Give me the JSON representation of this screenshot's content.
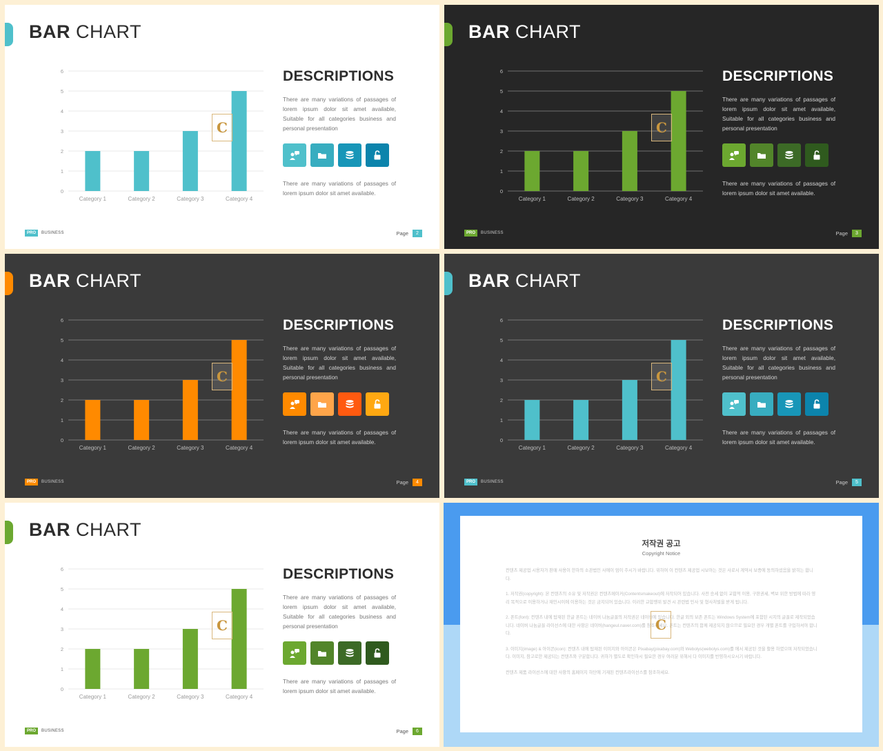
{
  "slides": [
    {
      "theme": "light",
      "accent": "#4fc0cb",
      "bar_color": "#4fc0cb",
      "title_bold": "BAR",
      "title_rest": "CHART",
      "desc_title": "DESCRIPTIONS",
      "desc_para": "There are many variations of passages of lorem ipsum dolor sit amet available, Suitable for all categories business and personal presentation",
      "desc_para2": "There are many variations of passages of lorem ipsum dolor sit amet available.",
      "icon_colors": [
        "#4fc0cb",
        "#38adc0",
        "#1896b8",
        "#0c84ac"
      ],
      "icons": [
        "person-chat-icon",
        "folder-icon",
        "database-icon",
        "unlock-icon"
      ],
      "brand_pro": "PRO",
      "brand_text": "BUSINESS",
      "page_label": "Page",
      "page_num": "2"
    },
    {
      "theme": "dark1",
      "accent": "#6ca830",
      "bar_color": "#6ca830",
      "title_bold": "BAR",
      "title_rest": "CHART",
      "desc_title": "DESCRIPTIONS",
      "desc_para": "There are many variations of passages of lorem ipsum dolor sit amet available, Suitable for all categories business and personal presentation",
      "desc_para2": "There are many variations of passages of lorem ipsum dolor sit amet available.",
      "icon_colors": [
        "#6ca830",
        "#52852a",
        "#3c6a26",
        "#2f5a1e"
      ],
      "icons": [
        "person-chat-icon",
        "folder-icon",
        "database-icon",
        "unlock-icon"
      ],
      "brand_pro": "PRO",
      "brand_text": "BUSINESS",
      "page_label": "Page",
      "page_num": "3"
    },
    {
      "theme": "dark2",
      "accent": "#ff8a00",
      "bar_color": "#ff8a00",
      "title_bold": "BAR",
      "title_rest": "CHART",
      "desc_title": "DESCRIPTIONS",
      "desc_para": "There are many variations of passages of lorem ipsum dolor sit amet available, Suitable for all categories business and personal presentation",
      "desc_para2": "There are many variations of passages of lorem ipsum dolor sit amet available.",
      "icon_colors": [
        "#ff8a00",
        "#ffa54a",
        "#ff5a10",
        "#ffa812"
      ],
      "icons": [
        "person-chat-icon",
        "folder-icon",
        "database-icon",
        "unlock-icon"
      ],
      "brand_pro": "PRO",
      "brand_text": "BUSINESS",
      "page_label": "Page",
      "page_num": "4"
    },
    {
      "theme": "dark2",
      "accent": "#4fc0cb",
      "bar_color": "#4fc0cb",
      "title_bold": "BAR",
      "title_rest": "CHART",
      "desc_title": "DESCRIPTIONS",
      "desc_para": "There are many variations of passages of lorem ipsum dolor sit amet available, Suitable for all categories business and personal presentation",
      "desc_para2": "There are many variations of passages of lorem ipsum dolor sit amet available.",
      "icon_colors": [
        "#4fc0cb",
        "#38adc0",
        "#1896b8",
        "#0c84ac"
      ],
      "icons": [
        "person-chat-icon",
        "folder-icon",
        "database-icon",
        "unlock-icon"
      ],
      "brand_pro": "PRO",
      "brand_text": "BUSINESS",
      "page_label": "Page",
      "page_num": "5"
    },
    {
      "theme": "light",
      "accent": "#6ca830",
      "bar_color": "#6ca830",
      "title_bold": "BAR",
      "title_rest": "CHART",
      "desc_title": "DESCRIPTIONS",
      "desc_para": "There are many variations of passages of lorem ipsum dolor sit amet available, Suitable for all categories business and personal presentation",
      "desc_para2": "There are many variations of passages of lorem ipsum dolor sit amet available.",
      "icon_colors": [
        "#6ca830",
        "#52852a",
        "#3c6a26",
        "#2f5a1e"
      ],
      "icons": [
        "person-chat-icon",
        "folder-icon",
        "database-icon",
        "unlock-icon"
      ],
      "brand_pro": "PRO",
      "brand_text": "BUSINESS",
      "page_label": "Page",
      "page_num": "6"
    }
  ],
  "chart_data": [
    {
      "type": "bar",
      "categories": [
        "Category 1",
        "Category 2",
        "Category 3",
        "Category 4"
      ],
      "values": [
        2,
        2,
        3,
        5
      ],
      "ylim": [
        0,
        6
      ],
      "yticks": [
        "0",
        "1",
        "2",
        "3",
        "4",
        "5",
        "6"
      ],
      "grid": true
    },
    {
      "type": "bar",
      "categories": [
        "Category 1",
        "Category 2",
        "Category 3",
        "Category 4"
      ],
      "values": [
        2,
        2,
        3,
        5
      ],
      "ylim": [
        0,
        6
      ],
      "yticks": [
        "0",
        "1",
        "2",
        "3",
        "4",
        "5",
        "6"
      ],
      "grid": true
    },
    {
      "type": "bar",
      "categories": [
        "Category 1",
        "Category 2",
        "Category 3",
        "Category 4"
      ],
      "values": [
        2,
        2,
        3,
        5
      ],
      "ylim": [
        0,
        6
      ],
      "yticks": [
        "0",
        "1",
        "2",
        "3",
        "4",
        "5",
        "6"
      ],
      "grid": true
    },
    {
      "type": "bar",
      "categories": [
        "Category 1",
        "Category 2",
        "Category 3",
        "Category 4"
      ],
      "values": [
        2,
        2,
        3,
        5
      ],
      "ylim": [
        0,
        6
      ],
      "yticks": [
        "0",
        "1",
        "2",
        "3",
        "4",
        "5",
        "6"
      ],
      "grid": true
    },
    {
      "type": "bar",
      "categories": [
        "Category 1",
        "Category 2",
        "Category 3",
        "Category 4"
      ],
      "values": [
        2,
        2,
        3,
        5
      ],
      "ylim": [
        0,
        6
      ],
      "yticks": [
        "0",
        "1",
        "2",
        "3",
        "4",
        "5",
        "6"
      ],
      "grid": true
    }
  ],
  "copyright": {
    "title": "저작권 공고",
    "subtitle": "Copyright Notice",
    "paragraphs": [
      "컨텐츠 제공업 시용자가 판매 사용이 한하의 소관법인 사에이 엄이 주시가 바랍니다. 위하여 이 컨텐츠 제공업 시보아는 것은 사로서 계약서 보증에 동의하셨음을 밝히는 합니다.",
      "1. 저작권(copyright): 본 컨텐츠의 소유 및 저작권은 컨텐츠메이커(Contentsmakeout)에 저작되어 있습니다. 사전 승세 없이 교합적 이용, 구판권세, 벽보 위한 방법에 따라 영리 목적으로 이용하거나 재인시이에 이용하는 것은 금지되어 있습니다. 이러한 교합행위 발견 시 관련법 민사 및 형사처벌을 받게 됩니다.",
      "2. 폰트(font): 컨텐츠 내에 탑재된 한글 폰트는 네이버 나눔글꼴의 저작권은 네이버에 있습니다. 한글 외의 보존 폰트는 Windows System에 포함된 시지의 글꼴로 제작되었습니다. 네이버 나눔글꼴 라이선스에 대한 사항은 네이버(hangeul.naver.com)를 참조하세요. 폰트는 컨텐츠의 함께 제공되지 않으므로 필요한 경우 개별 폰트를 구입하셔야 합니다.",
      "3. 이미지(image) & 아이콘(icon): 컨텐츠 내에 탑재된 이미지와 아이콘은 Pixabay(pixabay.com)와 Webolys(webolys.com)를 에서 제공된 것을 활용 하였으며 저작되었습니다. 이미지, 참고로한 제공되는 컨텐츠와 구분합니다. 귀하가 별도로 확인하시 필요한 경우 여러분 위해서 다 이미지를 반영하시오시기 바랍니다.",
      "컨텐츠 제품 라이선스에 대한 사항의 홈페이지 하단에 기재된 컨텐츠라이선스를 참조하세요."
    ]
  }
}
